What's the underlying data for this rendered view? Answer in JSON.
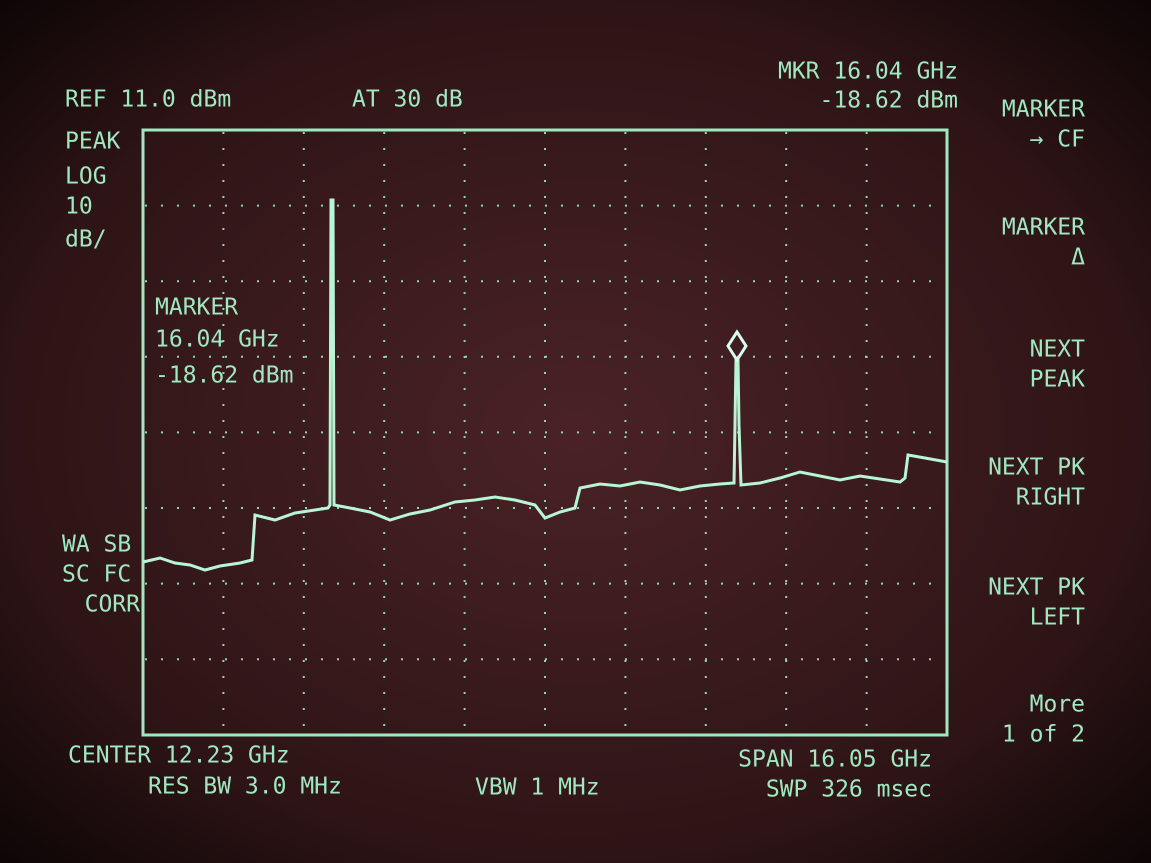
{
  "header": {
    "ref": "REF 11.0 dBm",
    "atten": "AT 30 dB",
    "marker_freq": "MKR 16.04 GHz",
    "marker_level": "-18.62 dBm"
  },
  "left_labels": [
    "PEAK",
    "LOG",
    "10",
    "dB/"
  ],
  "marker_box": [
    "MARKER",
    "16.04 GHz",
    "-18.62 dBm"
  ],
  "status": [
    "WA SB",
    "SC FC",
    "CORR"
  ],
  "softkeys": [
    [
      "MARKER",
      "→ CF"
    ],
    [
      "MARKER",
      "Δ"
    ],
    [
      "NEXT",
      "PEAK"
    ],
    [
      "NEXT PK",
      "RIGHT"
    ],
    [
      "NEXT PK",
      "LEFT"
    ],
    [
      "More",
      "1 of 2"
    ]
  ],
  "footer": {
    "center": "CENTER 12.23 GHz",
    "res_bw": "RES BW 3.0 MHz",
    "vbw": "VBW 1 MHz",
    "span": "SPAN 16.05 GHz",
    "sweep": "SWP 326 msec"
  }
}
